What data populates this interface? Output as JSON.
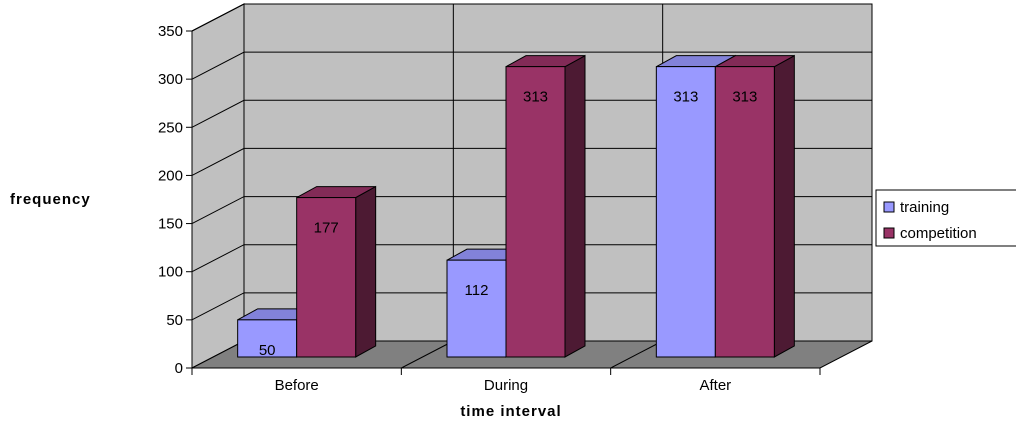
{
  "chart_data": {
    "type": "bar",
    "categories": [
      "Before",
      "During",
      "After"
    ],
    "series": [
      {
        "name": "training",
        "values": [
          50,
          112,
          313
        ]
      },
      {
        "name": "competition",
        "values": [
          177,
          313,
          313
        ]
      }
    ],
    "xlabel": "time interval",
    "ylabel": "frequency",
    "ylim": [
      0,
      350
    ],
    "yticks": [
      0,
      50,
      100,
      150,
      200,
      250,
      300,
      350
    ],
    "grid": true,
    "legend": "right",
    "three_d": true
  },
  "colors": {
    "training": "#9999ff",
    "competition": "#993366",
    "wall": "#c0c0c0",
    "floor": "#808080"
  }
}
